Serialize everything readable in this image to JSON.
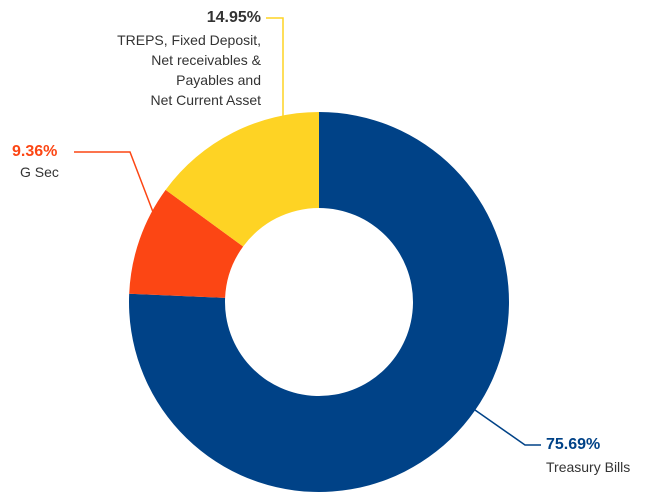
{
  "chart_data": {
    "type": "donut",
    "categories": [
      "Treasury Bills",
      "G Sec",
      "TREPS, Fixed Deposit,\nNet receivables &\nPayables and\nNet Current Asset"
    ],
    "values": [
      75.69,
      9.36,
      14.95
    ],
    "value_labels": [
      "75.69%",
      "9.36%",
      "14.95%"
    ],
    "colors": [
      "#004287",
      "#fc4614",
      "#fed324"
    ]
  }
}
